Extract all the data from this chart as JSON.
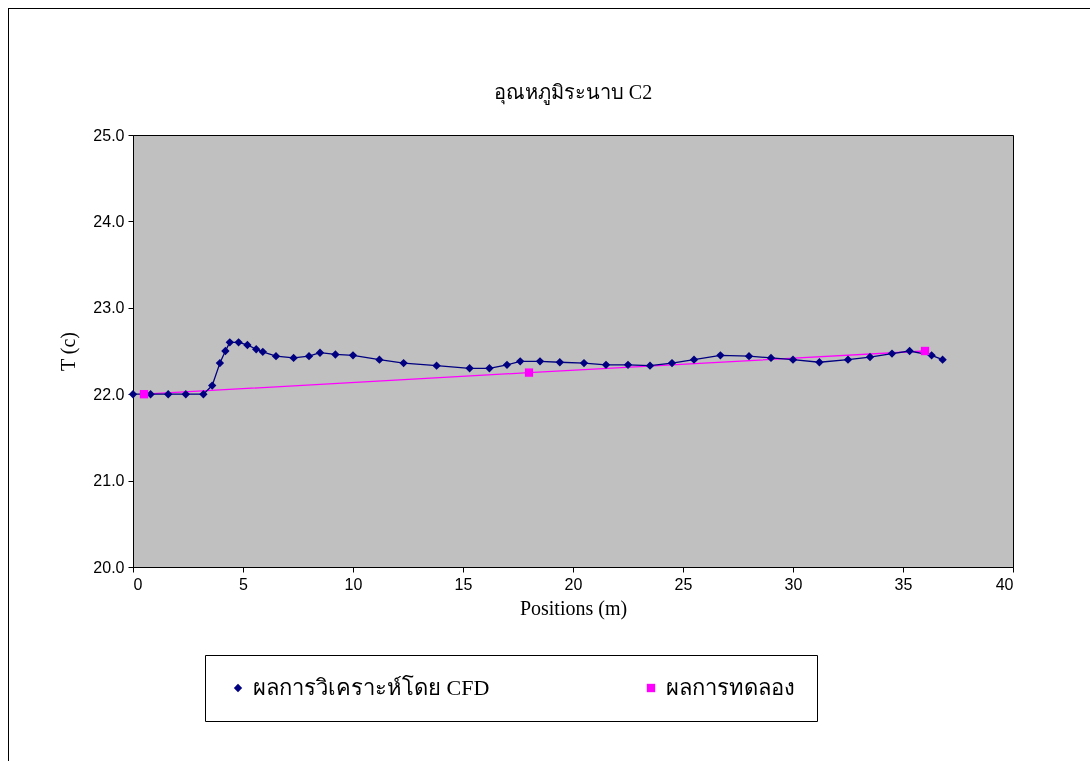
{
  "chart_data": {
    "type": "line",
    "title": "อุณหภูมิระนาบ C2",
    "xlabel": "Positions (m)",
    "ylabel": "T (c)",
    "xlim": [
      0,
      40
    ],
    "xticks": [
      0,
      5,
      10,
      15,
      20,
      25,
      30,
      35,
      40
    ],
    "ylim": [
      20,
      25
    ],
    "yticks": [
      {
        "value": 20,
        "label": "20.0"
      },
      {
        "value": 21,
        "label": "21.0"
      },
      {
        "value": 22,
        "label": "22.0"
      },
      {
        "value": 23,
        "label": "23.0"
      },
      {
        "value": 24,
        "label": "24.0"
      },
      {
        "value": 25,
        "label": "25.0"
      }
    ],
    "grid": false,
    "legend": "bottom",
    "series": [
      {
        "name": "ผลการวิเคราะห์โดย CFD",
        "color": "#000080",
        "marker": "diamond",
        "x": [
          0,
          0.8,
          1.6,
          2.4,
          3.2,
          3.6,
          3.95,
          4.2,
          4.4,
          4.8,
          5.2,
          5.6,
          5.9,
          6.5,
          7.3,
          8.0,
          8.5,
          9.2,
          10.0,
          11.2,
          12.3,
          13.8,
          15.3,
          16.2,
          17.0,
          17.6,
          18.5,
          19.4,
          20.5,
          21.5,
          22.5,
          23.5,
          24.5,
          25.5,
          26.7,
          28.0,
          29.0,
          30.0,
          31.2,
          32.5,
          33.5,
          34.5,
          35.3,
          36.3,
          36.8
        ],
        "values": [
          22.0,
          22.0,
          22.0,
          22.0,
          22.0,
          22.1,
          22.36,
          22.5,
          22.6,
          22.6,
          22.57,
          22.52,
          22.49,
          22.44,
          22.42,
          22.44,
          22.48,
          22.46,
          22.45,
          22.4,
          22.36,
          22.33,
          22.3,
          22.3,
          22.34,
          22.38,
          22.38,
          22.37,
          22.36,
          22.34,
          22.34,
          22.33,
          22.36,
          22.4,
          22.45,
          22.44,
          22.42,
          22.4,
          22.37,
          22.4,
          22.43,
          22.47,
          22.5,
          22.45,
          22.4
        ]
      },
      {
        "name": "ผลการทดลอง",
        "color": "#ff00ff",
        "marker": "square",
        "x": [
          0.5,
          18,
          36
        ],
        "values": [
          22.0,
          22.25,
          22.5
        ]
      }
    ]
  }
}
